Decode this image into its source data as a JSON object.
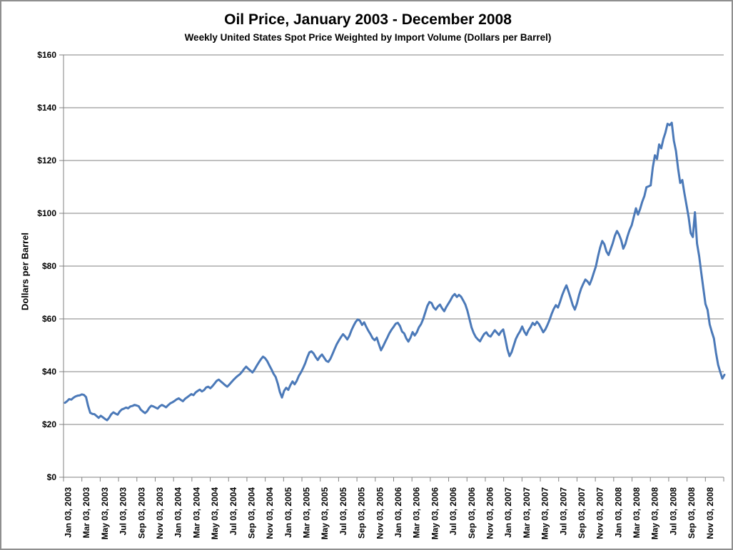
{
  "chart_data": {
    "type": "line",
    "title": "Oil Price, January 2003 - December 2008",
    "subtitle": "Weekly United States Spot Price Weighted by Import Volume (Dollars per Barrel)",
    "ylabel": "Dollars per Barrel",
    "xlabel": "",
    "ylim": [
      0,
      160
    ],
    "y_tick_step": 20,
    "grid": "horizontal",
    "legend": "none",
    "line_color": "#4b79b8",
    "axis_color": "#808080",
    "y_tick_labels": [
      "$0",
      "$20",
      "$40",
      "$60",
      "$80",
      "$100",
      "$120",
      "$140",
      "$160"
    ],
    "x_tick_labels": [
      "Jan 03, 2003",
      "Mar 03, 2003",
      "May 03, 2003",
      "Jul 03, 2003",
      "Sep 03, 2003",
      "Nov 03, 2003",
      "Jan 03, 2004",
      "Mar 03, 2004",
      "May 03, 2004",
      "Jul 03, 2004",
      "Sep 03, 2004",
      "Nov 03, 2004",
      "Jan 03, 2005",
      "Mar 03, 2005",
      "May 03, 2005",
      "Jul 03, 2005",
      "Sep 03, 2005",
      "Nov 03, 2005",
      "Jan 03, 2006",
      "Mar 03, 2006",
      "May 03, 2006",
      "Jul 03, 2006",
      "Sep 03, 2006",
      "Nov 03, 2006",
      "Jan 03, 2007",
      "Mar 03, 2007",
      "May 03, 2007",
      "Jul 03, 2007",
      "Sep 03, 2007",
      "Nov 03, 2007",
      "Jan 03, 2008",
      "Mar 03, 2008",
      "May 03, 2008",
      "Jul 03, 2008",
      "Sep 03, 2008",
      "Nov 03, 2008"
    ],
    "series": [
      {
        "name": "Weekly U.S. spot price weighted by import volume",
        "unit": "Dollars per Barrel",
        "frequency": "weekly",
        "values": [
          28.2,
          28.8,
          29.6,
          29.4,
          30.1,
          30.6,
          30.9,
          31.0,
          31.4,
          31.2,
          30.4,
          27.0,
          24.4,
          24.0,
          23.9,
          23.2,
          22.5,
          23.3,
          22.7,
          22.1,
          21.6,
          22.6,
          23.9,
          24.6,
          24.1,
          23.7,
          24.9,
          25.7,
          26.0,
          26.4,
          26.1,
          26.8,
          27.0,
          27.4,
          27.2,
          26.9,
          25.6,
          24.9,
          24.3,
          25.0,
          26.3,
          27.1,
          26.8,
          26.4,
          26.0,
          26.9,
          27.4,
          27.0,
          26.5,
          27.3,
          28.0,
          28.4,
          28.9,
          29.5,
          29.9,
          29.3,
          28.8,
          29.7,
          30.3,
          30.9,
          31.5,
          31.1,
          32.1,
          32.7,
          33.2,
          32.5,
          33.0,
          34.0,
          34.3,
          33.7,
          34.5,
          35.5,
          36.5,
          37.0,
          36.3,
          35.6,
          34.9,
          34.3,
          35.1,
          36.0,
          36.9,
          37.7,
          38.4,
          39.0,
          39.9,
          41.0,
          41.9,
          41.1,
          40.4,
          39.7,
          40.8,
          42.2,
          43.5,
          44.7,
          45.7,
          45.1,
          44.0,
          42.4,
          40.9,
          39.2,
          38.0,
          35.5,
          32.3,
          30.2,
          32.7,
          33.9,
          33.1,
          34.9,
          36.3,
          35.2,
          36.5,
          38.4,
          39.7,
          41.3,
          43.1,
          45.4,
          47.3,
          47.7,
          46.9,
          45.5,
          44.4,
          45.7,
          46.5,
          45.3,
          44.1,
          43.7,
          44.9,
          46.7,
          48.6,
          50.4,
          51.8,
          53.1,
          54.2,
          53.3,
          52.2,
          53.6,
          55.7,
          57.4,
          58.9,
          59.8,
          59.3,
          57.7,
          58.7,
          57.0,
          55.5,
          54.2,
          52.7,
          51.9,
          52.9,
          50.4,
          48.1,
          49.6,
          51.3,
          52.9,
          54.6,
          55.9,
          57.0,
          58.2,
          58.5,
          57.3,
          55.2,
          54.5,
          52.6,
          51.4,
          52.9,
          55.0,
          53.7,
          54.9,
          56.8,
          58.0,
          59.9,
          62.4,
          64.9,
          66.4,
          66.0,
          64.3,
          63.5,
          64.7,
          65.4,
          64.0,
          62.9,
          64.5,
          65.8,
          67.1,
          68.6,
          69.4,
          68.3,
          69.1,
          68.4,
          67.0,
          65.5,
          63.1,
          59.9,
          56.7,
          54.6,
          53.1,
          52.2,
          51.5,
          53.0,
          54.3,
          54.9,
          53.7,
          53.3,
          54.5,
          55.7,
          54.8,
          53.9,
          55.2,
          56.0,
          52.5,
          48.5,
          45.9,
          47.4,
          49.9,
          52.4,
          54.0,
          55.3,
          57.1,
          55.2,
          53.9,
          55.7,
          56.9,
          58.5,
          57.7,
          58.9,
          58.0,
          56.5,
          54.9,
          56.0,
          57.7,
          59.6,
          61.9,
          63.8,
          65.2,
          64.3,
          66.5,
          69.0,
          71.0,
          72.7,
          70.4,
          67.9,
          65.2,
          63.5,
          65.8,
          69.0,
          71.5,
          73.3,
          74.9,
          74.2,
          73.0,
          75.0,
          77.5,
          79.9,
          83.7,
          87.0,
          89.5,
          88.3,
          85.5,
          84.2,
          86.4,
          88.7,
          91.5,
          93.3,
          91.9,
          89.8,
          86.6,
          88.4,
          91.3,
          93.7,
          95.5,
          98.7,
          101.9,
          99.5,
          101.7,
          104.4,
          106.5,
          109.9,
          110.2,
          110.6,
          117.4,
          122.0,
          120.6,
          126.1,
          124.6,
          128.1,
          130.6,
          133.9,
          133.4,
          134.3,
          127.5,
          123.6,
          117.0,
          111.5,
          112.6,
          107.6,
          103.1,
          98.6,
          92.5,
          91.0,
          100.4,
          88.5,
          83.8,
          77.5,
          71.5,
          65.6,
          63.4,
          57.9,
          55.1,
          52.6,
          47.1,
          42.6,
          39.9,
          37.4,
          38.8
        ]
      }
    ]
  }
}
